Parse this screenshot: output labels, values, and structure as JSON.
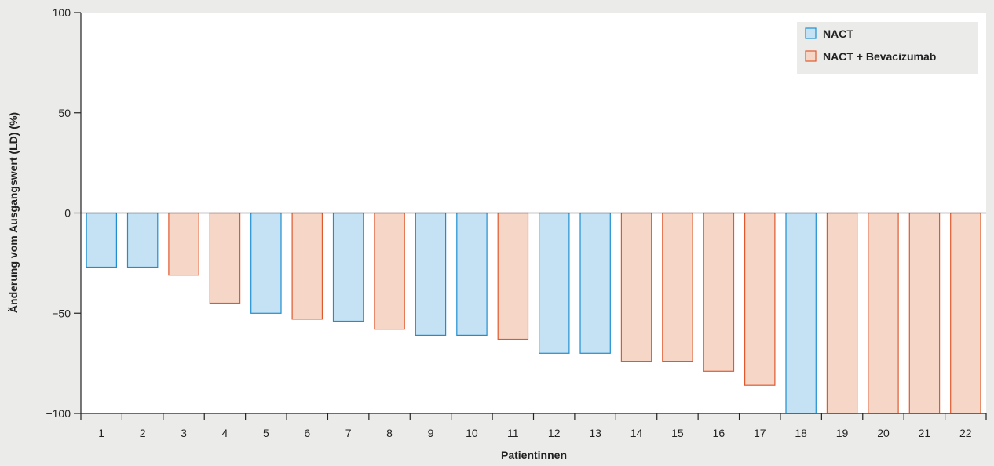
{
  "chart_data": {
    "type": "bar",
    "xlabel": "Patientinnen",
    "ylabel": "Änderung vom Ausgangswert (LD) (%)",
    "ylim": [
      -100,
      100
    ],
    "yticks": [
      100,
      50,
      0,
      -50,
      -100
    ],
    "ytick_labels": [
      "100",
      "50",
      "0",
      "−50",
      "−100"
    ],
    "grid": false,
    "legend_position": "top-right",
    "series": [
      {
        "name": "NACT",
        "fill": "#c5e2f4",
        "stroke": "#1d8fd1"
      },
      {
        "name": "NACT + Bevacizumab",
        "fill": "#f6d7c7",
        "stroke": "#e0592d"
      }
    ],
    "categories": [
      "1",
      "2",
      "3",
      "4",
      "5",
      "6",
      "7",
      "8",
      "9",
      "10",
      "11",
      "12",
      "13",
      "14",
      "15",
      "16",
      "17",
      "18",
      "19",
      "20",
      "21",
      "22"
    ],
    "values": [
      -27,
      -27,
      -31,
      -45,
      -50,
      -53,
      -54,
      -58,
      -61,
      -61,
      -63,
      -70,
      -70,
      -74,
      -74,
      -79,
      -86,
      -100,
      -100,
      -100,
      -100,
      -100
    ],
    "groups": [
      0,
      0,
      1,
      1,
      0,
      1,
      0,
      1,
      0,
      0,
      1,
      0,
      0,
      1,
      1,
      1,
      1,
      0,
      1,
      1,
      1,
      1
    ]
  }
}
